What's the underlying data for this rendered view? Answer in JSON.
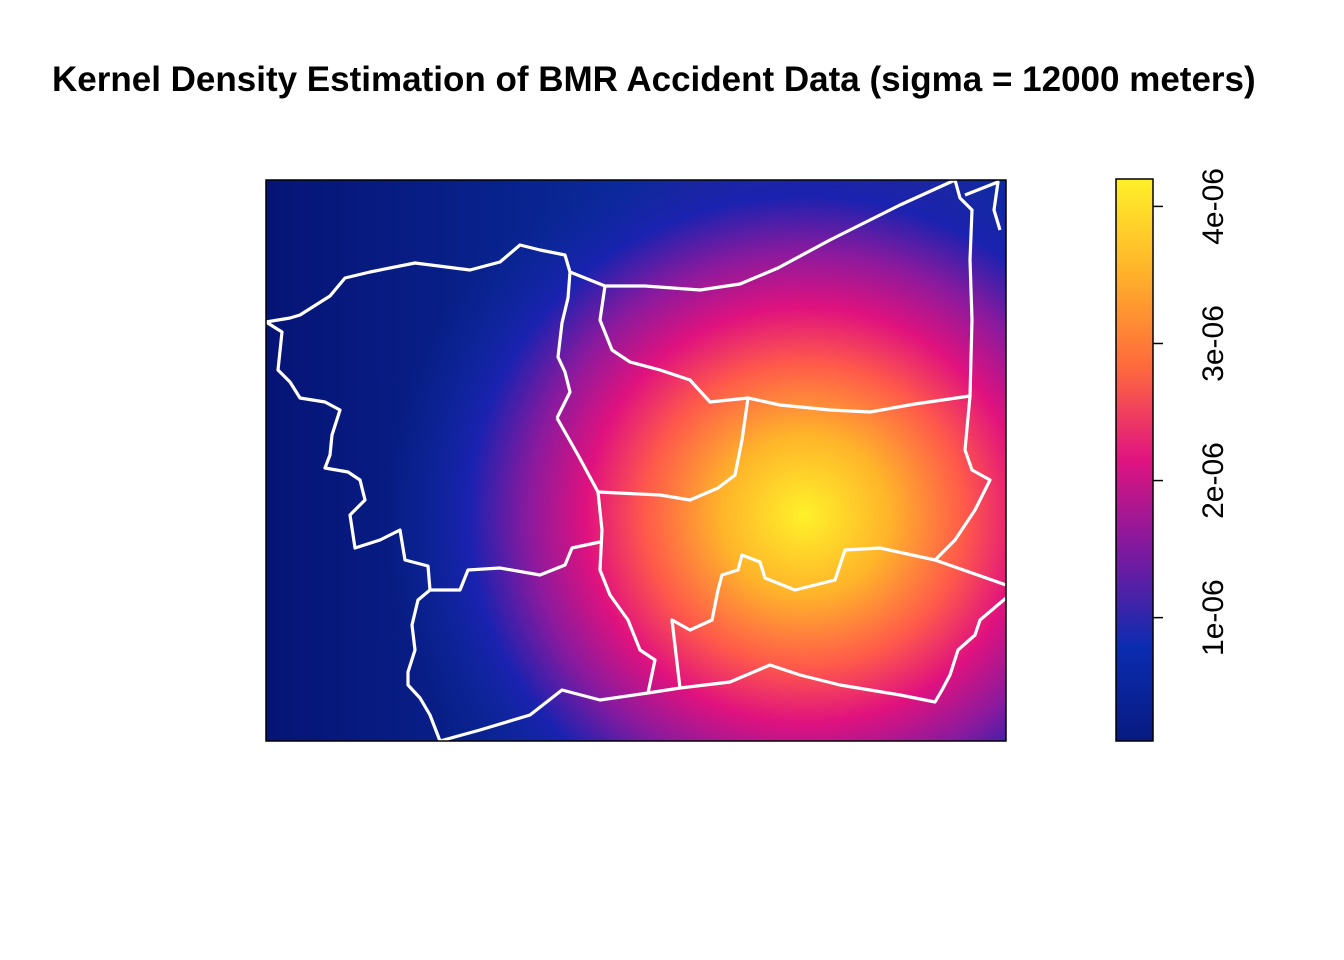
{
  "chart_data": {
    "type": "heatmap",
    "title": "Kernel Density Estimation of BMR Accident Data (sigma = 12000 meters)",
    "xlabel": "",
    "ylabel": "",
    "colorbar": {
      "range": [
        1e-07,
        4.2e-06
      ],
      "ticks": [
        {
          "value": 1e-06,
          "label": "1e-06"
        },
        {
          "value": 2e-06,
          "label": "2e-06"
        },
        {
          "value": 3e-06,
          "label": "3e-06"
        },
        {
          "value": 4e-06,
          "label": "4e-06"
        }
      ],
      "colormap": [
        "#081a80",
        "#0b2cb0",
        "#7a1aa0",
        "#e01480",
        "#ff6a3c",
        "#ffb22a",
        "#fff02a"
      ]
    },
    "density_peak": 4.2e-06,
    "boundary_color": "#ffffff",
    "legend_position": "right"
  }
}
